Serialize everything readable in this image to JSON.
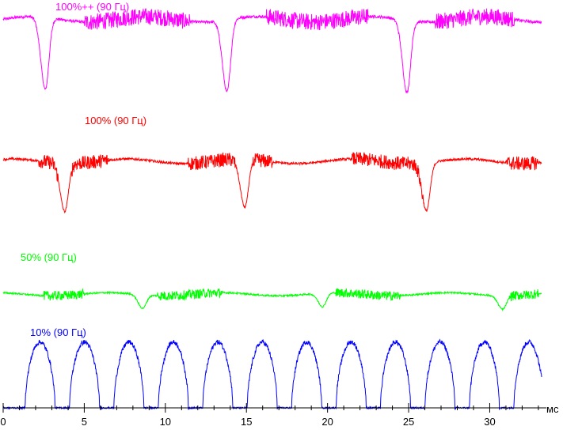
{
  "chart_data": {
    "type": "line",
    "title": "",
    "xlabel": "мс",
    "ylabel": "",
    "xlim": [
      0,
      33.2
    ],
    "x_ticks": [
      0,
      5,
      10,
      15,
      20,
      25,
      30
    ],
    "x_tick_labels": [
      "0",
      "5",
      "10",
      "15",
      "20",
      "25",
      "30"
    ],
    "grid": false,
    "legend": "none",
    "series": [
      {
        "name": "100%++ (90 Гц)",
        "color": "#ff00ff",
        "baseline": 0.86,
        "dips": [
          {
            "center_ms": 2.6,
            "depth": 0.78
          },
          {
            "center_ms": 13.8,
            "depth": 0.78
          },
          {
            "center_ms": 24.9,
            "depth": 0.78
          }
        ],
        "noise_windows_ms": [
          [
            5.0,
            11.5
          ],
          [
            16.2,
            22.5
          ],
          [
            26.6,
            31.5
          ]
        ]
      },
      {
        "name": "100% (90 Гц)",
        "color": "#ff0000",
        "baseline": 0.53,
        "dips": [
          {
            "center_ms": 3.8,
            "depth": 0.62
          },
          {
            "center_ms": 14.9,
            "depth": 0.62
          },
          {
            "center_ms": 26.1,
            "depth": 0.62
          }
        ],
        "noise_windows_ms": [
          [
            2.2,
            3.4
          ],
          [
            4.2,
            6.5
          ],
          [
            11.4,
            14.3
          ],
          [
            15.4,
            16.6
          ],
          [
            21.5,
            25.9
          ],
          [
            31.0,
            33.0
          ]
        ]
      },
      {
        "name": "50% (90 Гц)",
        "color": "#00ff00",
        "baseline": 0.36,
        "dips": [
          {
            "center_ms": 8.6,
            "depth": 0.26
          },
          {
            "center_ms": 19.7,
            "depth": 0.26
          },
          {
            "center_ms": 30.8,
            "depth": 0.26
          }
        ],
        "noise_windows_ms": [
          [
            2.5,
            5.0
          ],
          [
            9.5,
            13.5
          ],
          [
            20.5,
            24.5
          ],
          [
            31.2,
            33.0
          ]
        ]
      },
      {
        "name": "10% (90 Гц)",
        "color": "#0000ff",
        "baseline": 0.0,
        "period_ms": 2.74,
        "first_pulse_start_ms": 1.35,
        "pulse_width_ms": 1.85,
        "pulse_height": 0.85
      }
    ]
  }
}
